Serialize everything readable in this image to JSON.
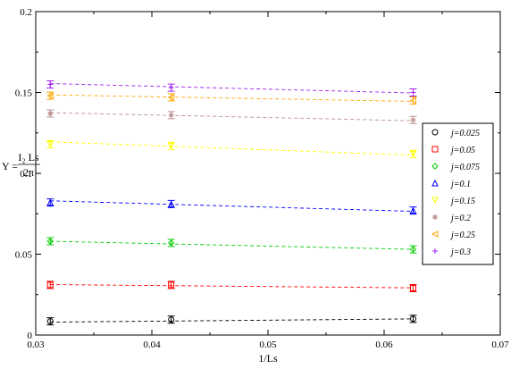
{
  "chart_data": {
    "type": "scatter",
    "xlabel": "1/Ls",
    "ylabel_prefix": "Υ =",
    "ylabel_numerator": "I₂ Ls",
    "ylabel_denominator": "2π",
    "xlim": [
      0.03,
      0.07
    ],
    "ylim": [
      0,
      0.2
    ],
    "xticks": [
      "0.03",
      "0.04",
      "0.05",
      "0.06",
      "0.07"
    ],
    "yticks": [
      "0",
      "0.05",
      "0.1",
      "0.15",
      "0.2"
    ],
    "grid": false,
    "legend_position": "right",
    "x": [
      0.03125,
      0.041667,
      0.0625
    ],
    "series": [
      {
        "name": "j=0.025",
        "marker": "circle",
        "color": "#000000",
        "values": [
          0.0085,
          0.0095,
          0.01
        ],
        "fit": [
          0.008,
          0.01
        ]
      },
      {
        "name": "j=0.05",
        "marker": "square",
        "color": "#ff0000",
        "values": [
          0.031,
          0.031,
          0.029
        ],
        "fit": [
          0.0312,
          0.0292
        ]
      },
      {
        "name": "j=0.075",
        "marker": "diamond",
        "color": "#00cc00",
        "values": [
          0.058,
          0.057,
          0.053
        ],
        "fit": [
          0.058,
          0.053
        ]
      },
      {
        "name": "j=0.1",
        "marker": "triangle-up",
        "color": "#0000ff",
        "values": [
          0.082,
          0.081,
          0.077
        ],
        "fit": [
          0.083,
          0.0765
        ]
      },
      {
        "name": "j=0.15",
        "marker": "triangle-down",
        "color": "#ffff00",
        "values": [
          0.118,
          0.117,
          0.112
        ],
        "fit": [
          0.1195,
          0.1112
        ]
      },
      {
        "name": "j=0.2",
        "marker": "star",
        "color": "#bc8f8f",
        "values": [
          0.137,
          0.136,
          0.133
        ],
        "fit": [
          0.1375,
          0.1325
        ]
      },
      {
        "name": "j=0.25",
        "marker": "triangle-left",
        "color": "#ffa500",
        "values": [
          0.148,
          0.147,
          0.145
        ],
        "fit": [
          0.1485,
          0.1445
        ]
      },
      {
        "name": "j=0.3",
        "marker": "plus",
        "color": "#a020f0",
        "values": [
          0.155,
          0.153,
          0.15
        ],
        "fit": [
          0.1555,
          0.1497
        ]
      }
    ]
  }
}
